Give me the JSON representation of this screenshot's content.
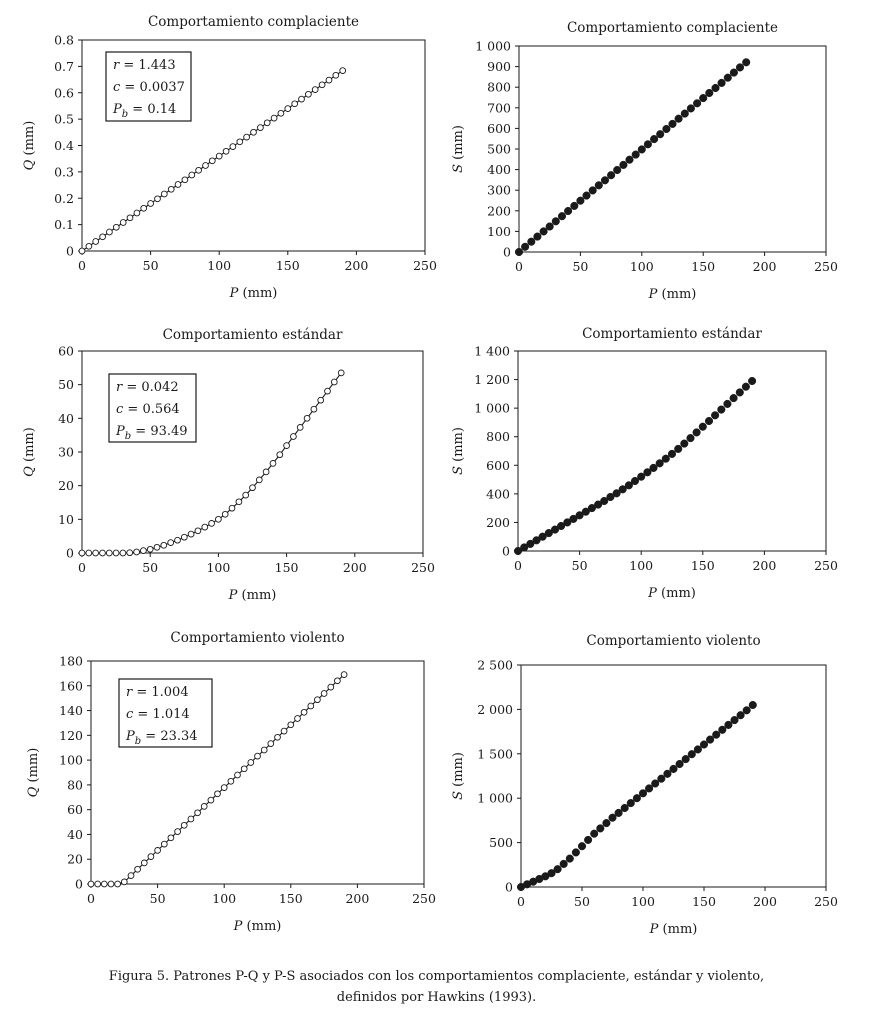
{
  "chart_data": [
    {
      "type": "scatter",
      "title": "Comportamiento complaciente",
      "xlabel": "P (mm)",
      "ylabel": "Q (mm)",
      "xlim": [
        0,
        250
      ],
      "ylim": [
        0,
        0.8
      ],
      "xticks": [
        "0",
        "50",
        "100",
        "150",
        "200",
        "250"
      ],
      "yticks": [
        "0",
        "0.1",
        "0.2",
        "0.3",
        "0.4",
        "0.5",
        "0.6",
        "0.7",
        "0.8"
      ],
      "marker": "open-circle",
      "connecting_line": true,
      "legend_box": [
        "r = 1.443",
        "c = 0.0037",
        "Pb = 0.14"
      ],
      "x": [
        0,
        5,
        10,
        15,
        20,
        25,
        30,
        35,
        40,
        45,
        50,
        55,
        60,
        65,
        70,
        75,
        80,
        85,
        90,
        95,
        100,
        105,
        110,
        115,
        120,
        125,
        130,
        135,
        140,
        145,
        150,
        155,
        160,
        165,
        170,
        175,
        180,
        185,
        190
      ],
      "y": [
        0,
        0.018,
        0.036,
        0.054,
        0.072,
        0.09,
        0.108,
        0.126,
        0.144,
        0.162,
        0.18,
        0.198,
        0.216,
        0.234,
        0.252,
        0.27,
        0.288,
        0.306,
        0.324,
        0.342,
        0.36,
        0.378,
        0.396,
        0.414,
        0.432,
        0.45,
        0.468,
        0.486,
        0.504,
        0.522,
        0.54,
        0.558,
        0.576,
        0.594,
        0.612,
        0.63,
        0.648,
        0.666,
        0.684
      ]
    },
    {
      "type": "scatter",
      "title": "Comportamiento complaciente",
      "xlabel": "P (mm)",
      "ylabel": "S (mm)",
      "xlim": [
        0,
        250
      ],
      "ylim": [
        0,
        1000
      ],
      "xticks": [
        "0",
        "50",
        "100",
        "150",
        "200",
        "250"
      ],
      "yticks": [
        "0",
        "100",
        "200",
        "300",
        "400",
        "500",
        "600",
        "700",
        "800",
        "900",
        "1 000"
      ],
      "marker": "filled-circle",
      "connecting_line": false,
      "x": [
        0,
        5,
        10,
        15,
        20,
        25,
        30,
        35,
        40,
        45,
        50,
        55,
        60,
        65,
        70,
        75,
        80,
        85,
        90,
        95,
        100,
        105,
        110,
        115,
        120,
        125,
        130,
        135,
        140,
        145,
        150,
        155,
        160,
        165,
        170,
        175,
        180,
        185
      ],
      "y": [
        0,
        25,
        50,
        75,
        100,
        124,
        149,
        174,
        199,
        224,
        249,
        274,
        299,
        324,
        348,
        373,
        398,
        423,
        448,
        473,
        498,
        523,
        548,
        572,
        597,
        622,
        647,
        672,
        697,
        722,
        747,
        772,
        796,
        821,
        846,
        871,
        896,
        921
      ]
    },
    {
      "type": "scatter",
      "title": "Comportamiento estándar",
      "xlabel": "P (mm)",
      "ylabel": "Q (mm)",
      "xlim": [
        0,
        250
      ],
      "ylim": [
        0,
        60
      ],
      "xticks": [
        "0",
        "50",
        "100",
        "150",
        "200",
        "250"
      ],
      "yticks": [
        "0",
        "10",
        "20",
        "30",
        "40",
        "50",
        "60"
      ],
      "marker": "open-circle",
      "connecting_line": true,
      "legend_box": [
        "r = 0.042",
        "c = 0.564",
        "Pb = 93.49"
      ],
      "x": [
        0,
        5,
        10,
        15,
        20,
        25,
        30,
        35,
        40,
        45,
        50,
        55,
        60,
        65,
        70,
        75,
        80,
        85,
        90,
        95,
        100,
        105,
        110,
        115,
        120,
        125,
        130,
        135,
        140,
        145,
        150,
        155,
        160,
        165,
        170,
        175,
        180,
        185,
        190
      ],
      "y": [
        0,
        0,
        0,
        0,
        0,
        0,
        0,
        0.1,
        0.3,
        0.7,
        1.1,
        1.7,
        2.3,
        3.1,
        3.8,
        4.7,
        5.6,
        6.6,
        7.7,
        8.8,
        10,
        11.5,
        13.3,
        15.2,
        17.2,
        19.4,
        21.7,
        24.1,
        26.6,
        29.2,
        31.9,
        34.6,
        37.3,
        40,
        42.7,
        45.4,
        48.1,
        50.8,
        53.5
      ]
    },
    {
      "type": "scatter",
      "title": "Comportamiento estándar",
      "xlabel": "P (mm)",
      "ylabel": "S (mm)",
      "xlim": [
        0,
        250
      ],
      "ylim": [
        0,
        1400
      ],
      "xticks": [
        "0",
        "50",
        "100",
        "150",
        "200",
        "250"
      ],
      "yticks": [
        "0",
        "200",
        "400",
        "600",
        "800",
        "1 000",
        "1 200",
        "1 400"
      ],
      "marker": "filled-circle",
      "connecting_line": false,
      "x": [
        0,
        5,
        10,
        15,
        20,
        25,
        30,
        35,
        40,
        45,
        50,
        55,
        60,
        65,
        70,
        75,
        80,
        85,
        90,
        95,
        100,
        105,
        110,
        115,
        120,
        125,
        130,
        135,
        140,
        145,
        150,
        155,
        160,
        165,
        170,
        175,
        180,
        185,
        190
      ],
      "y": [
        0,
        25,
        50,
        75,
        100,
        125,
        150,
        175,
        200,
        225,
        250,
        275,
        300,
        325,
        350,
        378,
        404,
        432,
        460,
        490,
        520,
        551,
        582,
        614,
        646,
        680,
        715,
        752,
        790,
        830,
        870,
        910,
        950,
        990,
        1030,
        1070,
        1110,
        1150,
        1190
      ]
    },
    {
      "type": "scatter",
      "title": "Comportamiento violento",
      "xlabel": "P (mm)",
      "ylabel": "Q (mm)",
      "xlim": [
        0,
        250
      ],
      "ylim": [
        0,
        180
      ],
      "xticks": [
        "0",
        "50",
        "100",
        "150",
        "200",
        "250"
      ],
      "yticks": [
        "0",
        "20",
        "40",
        "60",
        "80",
        "100",
        "120",
        "140",
        "160",
        "180"
      ],
      "marker": "open-circle",
      "connecting_line": true,
      "legend_box": [
        "r = 1.004",
        "c = 1.014",
        "Pb = 23.34"
      ],
      "x": [
        0,
        5,
        10,
        15,
        20,
        25,
        30,
        35,
        40,
        45,
        50,
        55,
        60,
        65,
        70,
        75,
        80,
        85,
        90,
        95,
        100,
        105,
        110,
        115,
        120,
        125,
        130,
        135,
        140,
        145,
        150,
        155,
        160,
        165,
        170,
        175,
        180,
        185,
        190
      ],
      "y": [
        0,
        0,
        0,
        0,
        0,
        1.7,
        6.8,
        11.9,
        17,
        22.1,
        27.1,
        32.2,
        37.3,
        42.3,
        47.4,
        52.5,
        57.5,
        62.6,
        67.7,
        72.8,
        77.8,
        82.9,
        88,
        93,
        98.1,
        103.2,
        108.2,
        113.3,
        118.4,
        123.4,
        128.5,
        133.6,
        138.6,
        143.7,
        148.8,
        153.8,
        158.9,
        164,
        169
      ]
    },
    {
      "type": "scatter",
      "title": "Comportamiento violento",
      "xlabel": "P (mm)",
      "ylabel": "S (mm)",
      "xlim": [
        0,
        250
      ],
      "ylim": [
        0,
        2500
      ],
      "xticks": [
        "0",
        "50",
        "100",
        "150",
        "200",
        "250"
      ],
      "yticks": [
        "0",
        "500",
        "1 000",
        "1 500",
        "2 000",
        "2 500"
      ],
      "marker": "filled-circle",
      "connecting_line": false,
      "x": [
        0,
        5,
        10,
        15,
        20,
        25,
        30,
        35,
        40,
        45,
        50,
        55,
        60,
        65,
        70,
        75,
        80,
        85,
        90,
        95,
        100,
        105,
        110,
        115,
        120,
        125,
        130,
        135,
        140,
        145,
        150,
        155,
        160,
        165,
        170,
        175,
        180,
        185,
        190
      ],
      "y": [
        0,
        30,
        60,
        90,
        120,
        155,
        200,
        260,
        320,
        390,
        460,
        530,
        600,
        660,
        720,
        780,
        835,
        890,
        945,
        1000,
        1055,
        1110,
        1165,
        1220,
        1275,
        1330,
        1385,
        1440,
        1495,
        1550,
        1605,
        1660,
        1715,
        1770,
        1825,
        1880,
        1935,
        1990,
        2050
      ]
    }
  ],
  "caption": {
    "line1": "Figura 5. Patrones P-Q y P-S asociados con los comportamientos complaciente, estándar y violento,",
    "line2": "definidos por Hawkins (1993)."
  }
}
